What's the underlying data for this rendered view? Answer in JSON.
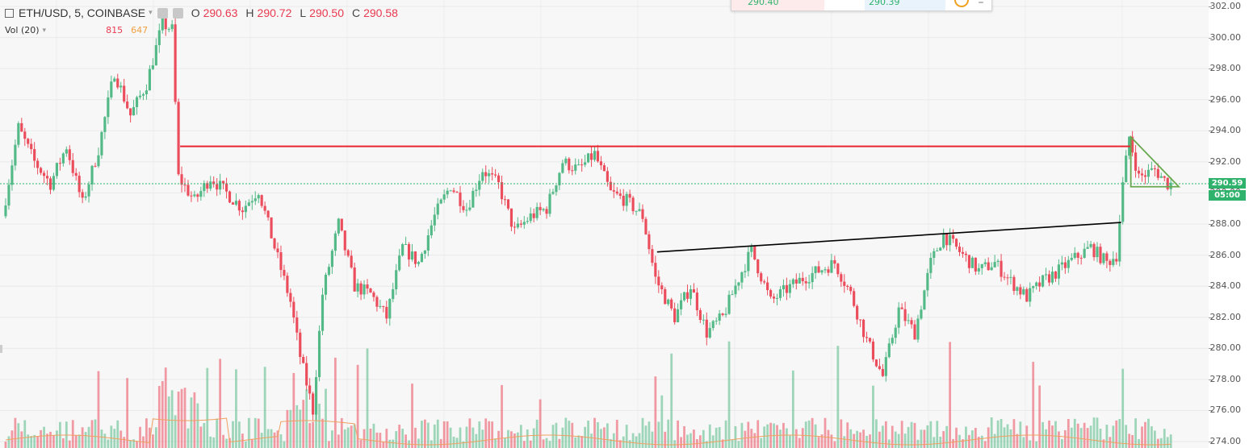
{
  "legend": {
    "symbol": "ETH/USD, 5, COINBASE",
    "o_label": "O",
    "o_value": "290.63",
    "h_label": "H",
    "h_value": "290.72",
    "l_label": "L",
    "l_value": "290.50",
    "c_label": "C",
    "c_value": "290.58",
    "vol_label": "Vol (20)",
    "vol_value1": "815",
    "vol_value2": "647"
  },
  "popup": {
    "value_a": "290.40",
    "value_b": "290.39"
  },
  "badges": {
    "price": "290.59",
    "time": "05:00"
  },
  "colors": {
    "up": "#53b987",
    "down": "#eb4d5c",
    "resistance": "#e8262f",
    "trendline": "#000000",
    "triangle": "#6aa84f",
    "last_price_line": "#2fb26b",
    "volume_ma": "#f0a060"
  },
  "chart_data": {
    "type": "candlestick",
    "symbol": "ETH/USD",
    "interval": "5",
    "exchange": "COINBASE",
    "ylim": [
      274,
      302
    ],
    "y_ticks": [
      "302.00",
      "300.00",
      "298.00",
      "296.00",
      "294.00",
      "292.00",
      "290.00",
      "288.00",
      "286.00",
      "284.00",
      "282.00",
      "280.00",
      "278.00",
      "276.00",
      "274.00"
    ],
    "last_price": 290.59,
    "close_path": [
      {
        "i": 0,
        "c": 288.5
      },
      {
        "i": 5,
        "c": 294.2
      },
      {
        "i": 10,
        "c": 292.0
      },
      {
        "i": 15,
        "c": 290.6
      },
      {
        "i": 20,
        "c": 293.0
      },
      {
        "i": 25,
        "c": 289.3
      },
      {
        "i": 30,
        "c": 292.8
      },
      {
        "i": 35,
        "c": 297.8
      },
      {
        "i": 40,
        "c": 295.0
      },
      {
        "i": 45,
        "c": 297.0
      },
      {
        "i": 50,
        "c": 300.9
      },
      {
        "i": 53,
        "c": 300.5
      },
      {
        "i": 55,
        "c": 291.0
      },
      {
        "i": 60,
        "c": 289.5
      },
      {
        "i": 65,
        "c": 291.0
      },
      {
        "i": 70,
        "c": 290.0
      },
      {
        "i": 75,
        "c": 289.0
      },
      {
        "i": 80,
        "c": 290.2
      },
      {
        "i": 85,
        "c": 286.5
      },
      {
        "i": 90,
        "c": 283.0
      },
      {
        "i": 93,
        "c": 279.5
      },
      {
        "i": 97,
        "c": 276.0
      },
      {
        "i": 100,
        "c": 283.5
      },
      {
        "i": 105,
        "c": 288.0
      },
      {
        "i": 110,
        "c": 284.0
      },
      {
        "i": 115,
        "c": 283.5
      },
      {
        "i": 120,
        "c": 282.0
      },
      {
        "i": 125,
        "c": 286.5
      },
      {
        "i": 130,
        "c": 285.5
      },
      {
        "i": 135,
        "c": 288.5
      },
      {
        "i": 140,
        "c": 290.5
      },
      {
        "i": 145,
        "c": 289.0
      },
      {
        "i": 150,
        "c": 291.5
      },
      {
        "i": 155,
        "c": 290.5
      },
      {
        "i": 160,
        "c": 287.5
      },
      {
        "i": 165,
        "c": 288.5
      },
      {
        "i": 170,
        "c": 289.0
      },
      {
        "i": 175,
        "c": 292.0
      },
      {
        "i": 180,
        "c": 291.5
      },
      {
        "i": 185,
        "c": 292.5
      },
      {
        "i": 190,
        "c": 290.0
      },
      {
        "i": 195,
        "c": 289.5
      },
      {
        "i": 200,
        "c": 288.5
      },
      {
        "i": 204,
        "c": 284.5
      },
      {
        "i": 210,
        "c": 282.0
      },
      {
        "i": 215,
        "c": 284.0
      },
      {
        "i": 220,
        "c": 281.0
      },
      {
        "i": 225,
        "c": 282.0
      },
      {
        "i": 230,
        "c": 284.5
      },
      {
        "i": 234,
        "c": 286.3
      },
      {
        "i": 240,
        "c": 283.0
      },
      {
        "i": 245,
        "c": 283.8
      },
      {
        "i": 250,
        "c": 284.5
      },
      {
        "i": 255,
        "c": 285.0
      },
      {
        "i": 260,
        "c": 285.5
      },
      {
        "i": 265,
        "c": 283.5
      },
      {
        "i": 270,
        "c": 280.5
      },
      {
        "i": 275,
        "c": 278.2
      },
      {
        "i": 280,
        "c": 282.5
      },
      {
        "i": 285,
        "c": 281.0
      },
      {
        "i": 290,
        "c": 285.5
      },
      {
        "i": 294,
        "c": 287.3
      },
      {
        "i": 300,
        "c": 286.0
      },
      {
        "i": 305,
        "c": 285.0
      },
      {
        "i": 310,
        "c": 285.5
      },
      {
        "i": 315,
        "c": 284.3
      },
      {
        "i": 320,
        "c": 283.3
      },
      {
        "i": 325,
        "c": 284.3
      },
      {
        "i": 330,
        "c": 285.0
      },
      {
        "i": 335,
        "c": 285.8
      },
      {
        "i": 340,
        "c": 286.5
      },
      {
        "i": 345,
        "c": 285.5
      },
      {
        "i": 348,
        "c": 286.0
      },
      {
        "i": 350,
        "c": 290.5
      },
      {
        "i": 352,
        "c": 293.6
      },
      {
        "i": 355,
        "c": 291.0
      },
      {
        "i": 360,
        "c": 291.5
      },
      {
        "i": 364,
        "c": 290.6
      }
    ],
    "volume_ma": "orange",
    "annotations": [
      {
        "type": "horizontal_line",
        "color": "red",
        "y": 293.0,
        "from_i": 55,
        "to_i": 352
      },
      {
        "type": "trendline",
        "color": "black",
        "from": {
          "i": 204,
          "y": 286.2
        },
        "to": {
          "i": 349,
          "y": 288.1
        }
      },
      {
        "type": "triangle",
        "color": "green",
        "points": [
          {
            "i": 352,
            "y": 293.6
          },
          {
            "i": 367,
            "y": 290.4
          },
          {
            "i": 352,
            "y": 290.4
          }
        ]
      }
    ]
  }
}
